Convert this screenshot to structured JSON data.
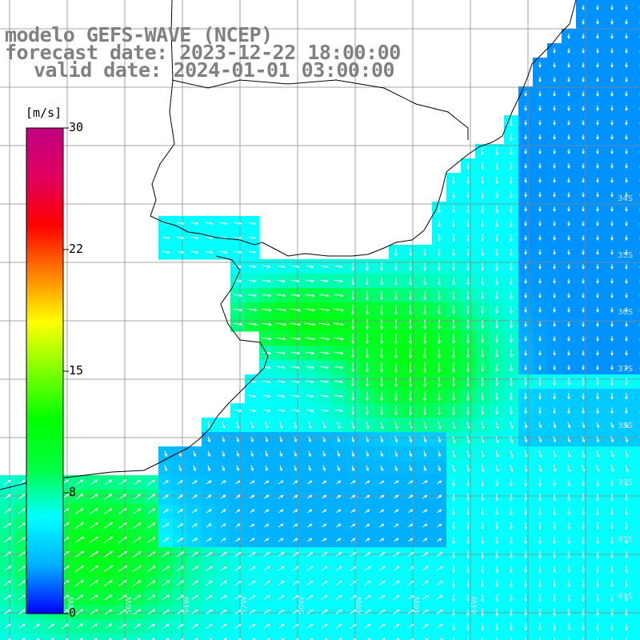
{
  "header": {
    "model": "modelo GEFS-WAVE (NCEP)",
    "forecast": "forecast date: 2023-12-22 18:00:00",
    "valid": "valid date: 2024-01-01 03:00:00"
  },
  "colorbar": {
    "units": "[m/s]",
    "labels": [
      "30",
      "22",
      "15",
      "8",
      "0"
    ],
    "min": 0,
    "max": 30,
    "stops": [
      "#0000ff",
      "#00b0ff",
      "#00ffff",
      "#00ff40",
      "#00ff00",
      "#80ff00",
      "#ffff00",
      "#ff8000",
      "#ff0000",
      "#e00060",
      "#c00080"
    ]
  },
  "grid": {
    "lat_labels": [
      "34S",
      "35S",
      "36S",
      "37S",
      "38S",
      "39S",
      "40S",
      "41S"
    ],
    "lon_labels": [
      "58W",
      "56W",
      "54W",
      "52W",
      "50W",
      "48W",
      "46W",
      "44W"
    ]
  },
  "colors": {
    "land": "#ffffff",
    "coast": "#000000",
    "grid": "#888888",
    "arrow": "#ffffff",
    "title": "#808080"
  }
}
